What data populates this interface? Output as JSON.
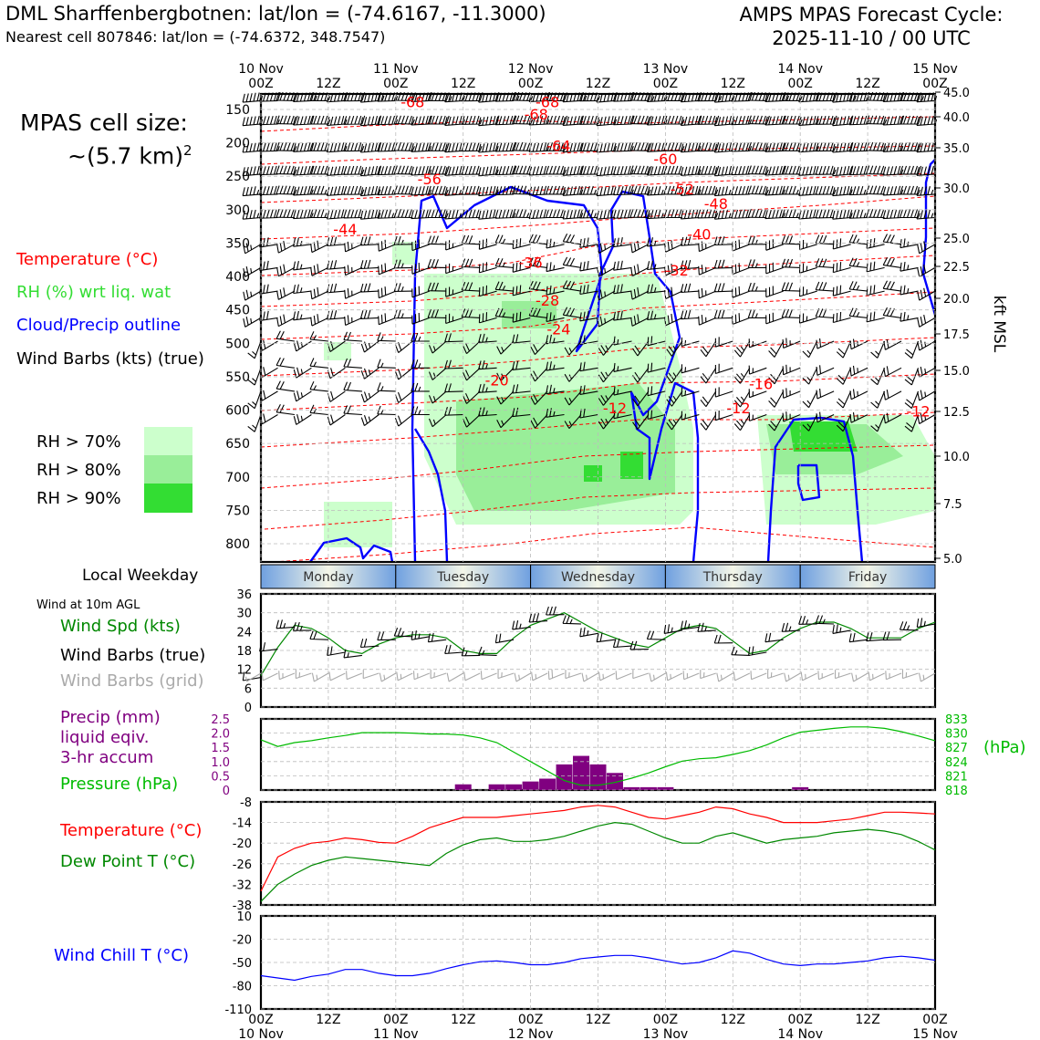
{
  "header": {
    "title_left": "DML Sharffenbergbotnen: lat/lon = (-74.6167, -11.3000)",
    "subtitle_left": "Nearest cell 807846: lat/lon = (-74.6372, 348.7547)",
    "title_right_line1": "AMPS MPAS Forecast Cycle:",
    "title_right_line2": "2025-11-10 / 00 UTC",
    "cell_size_line1": "MPAS cell size:",
    "cell_size_line2": "~(5.7 km)",
    "cell_size_exp": "2"
  },
  "legend_upper": {
    "temperature": "Temperature (°C)",
    "rh": "RH (%) wrt liq. wat",
    "cloud": "Cloud/Precip outline",
    "wind": "Wind Barbs (kts) (true)",
    "rh70": "RH > 70%",
    "rh80": "RH > 80%",
    "rh90": "RH > 90%"
  },
  "colors": {
    "temperature": "#ff0000",
    "rh_text": "#33dd33",
    "cloud": "#0000ff",
    "rh70": "#ccffcc",
    "rh80": "#99ee99",
    "rh90": "#33dd33",
    "wind_spd": "#008800",
    "barbs_grid": "#aaaaaa",
    "precip": "#800080",
    "pressure": "#00bb00",
    "dewpoint": "#008800",
    "windchill": "#0000ff"
  },
  "panel_labels": {
    "weekday_title": "Local Weekday",
    "wind10_title": "Wind at 10m AGL",
    "wind_spd": "Wind Spd (kts)",
    "wind_barbs_true": "Wind Barbs (true)",
    "wind_barbs_grid": "Wind Barbs (grid)",
    "precip_1": "Precip (mm)",
    "precip_2": "liquid eqiv.",
    "precip_3": "3-hr accum",
    "pressure": "Pressure (hPa)",
    "pressure_unit": "(hPa)",
    "temperature": "Temperature (°C)",
    "dewpoint": "Dew Point T (°C)",
    "windchill": "Wind Chill T (°C)",
    "kft_label": "kft MSL"
  },
  "chart_data": [
    {
      "type": "heatmap",
      "name": "cross-section",
      "x_hours": [
        0,
        120
      ],
      "top_ticks": [
        {
          "h": 0,
          "line1": "10 Nov",
          "line2": "00Z"
        },
        {
          "h": 12,
          "line1": "",
          "line2": "12Z"
        },
        {
          "h": 24,
          "line1": "11 Nov",
          "line2": "00Z"
        },
        {
          "h": 36,
          "line1": "",
          "line2": "12Z"
        },
        {
          "h": 48,
          "line1": "12 Nov",
          "line2": "00Z"
        },
        {
          "h": 60,
          "line1": "",
          "line2": "12Z"
        },
        {
          "h": 72,
          "line1": "13 Nov",
          "line2": "00Z"
        },
        {
          "h": 84,
          "line1": "",
          "line2": "12Z"
        },
        {
          "h": 96,
          "line1": "14 Nov",
          "line2": "00Z"
        },
        {
          "h": 108,
          "line1": "",
          "line2": "12Z"
        },
        {
          "h": 120,
          "line1": "15 Nov",
          "line2": "00Z"
        }
      ],
      "pressure_levels": [
        "150",
        "200",
        "250",
        "300",
        "350",
        "400",
        "450",
        "500",
        "550",
        "600",
        "650",
        "700",
        "750",
        "800"
      ],
      "kft_ticks": [
        "45.0",
        "40.0",
        "35.0",
        "30.0",
        "25.0",
        "22.5",
        "20.0",
        "17.5",
        "15.0",
        "12.5",
        "10.0",
        "7.5",
        "5.0"
      ],
      "temp_labels": [
        {
          "v": "-68",
          "h": 27,
          "p": 140
        },
        {
          "v": "-68",
          "h": 51,
          "p": 140
        },
        {
          "v": "-68",
          "h": 49,
          "p": 158
        },
        {
          "v": "-64",
          "h": 53,
          "p": 205
        },
        {
          "v": "-60",
          "h": 72,
          "p": 225
        },
        {
          "v": "-56",
          "h": 30,
          "p": 255
        },
        {
          "v": "-52",
          "h": 75,
          "p": 270
        },
        {
          "v": "-48",
          "h": 81,
          "p": 292
        },
        {
          "v": "-44",
          "h": 15,
          "p": 330
        },
        {
          "v": "-40",
          "h": 78,
          "p": 338
        },
        {
          "v": "-36",
          "h": 48,
          "p": 380
        },
        {
          "v": "-32",
          "h": 74,
          "p": 392
        },
        {
          "v": "-28",
          "h": 51,
          "p": 437
        },
        {
          "v": "-24",
          "h": 53,
          "p": 480
        },
        {
          "v": "-20",
          "h": 42,
          "p": 556
        },
        {
          "v": "-16",
          "h": 89,
          "p": 562
        },
        {
          "v": "-12",
          "h": 63,
          "p": 598
        },
        {
          "v": "-12",
          "h": 85,
          "p": 598
        },
        {
          "v": "-12",
          "h": 117,
          "p": 603
        }
      ]
    },
    {
      "type": "table",
      "name": "weekday-bar",
      "days": [
        "Monday",
        "Tuesday",
        "Wednesday",
        "Thursday",
        "Friday"
      ]
    },
    {
      "type": "line",
      "name": "wind-speed",
      "ylim": [
        0,
        36
      ],
      "yticks": [
        "0",
        "6",
        "12",
        "18",
        "24",
        "30",
        "36"
      ],
      "x": [
        0,
        3,
        6,
        9,
        12,
        15,
        18,
        21,
        24,
        27,
        30,
        33,
        36,
        39,
        42,
        45,
        48,
        51,
        54,
        57,
        60,
        63,
        66,
        69,
        72,
        75,
        78,
        81,
        84,
        87,
        90,
        93,
        96,
        99,
        102,
        105,
        108,
        111,
        114,
        117,
        120
      ],
      "values": [
        10,
        19,
        26,
        25,
        22,
        18,
        17,
        20,
        22,
        23,
        23,
        22,
        18,
        17,
        17,
        22,
        26,
        28,
        30,
        27,
        24,
        22,
        20,
        19,
        22,
        25,
        26,
        25,
        21,
        17,
        18,
        22,
        25,
        27,
        27,
        25,
        22,
        22,
        22,
        25,
        27
      ]
    },
    {
      "type": "bar",
      "name": "precip-pressure",
      "precip_ylim": [
        0,
        2.5
      ],
      "precip_ticks": [
        "0",
        "0.5",
        "1.0",
        "1.5",
        "2.0",
        "2.5"
      ],
      "precip_x": [
        36,
        42,
        45,
        48,
        51,
        54,
        57,
        60,
        63,
        66,
        69,
        72,
        96
      ],
      "precip_values": [
        0.2,
        0.2,
        0.2,
        0.3,
        0.4,
        0.9,
        1.2,
        0.9,
        0.6,
        0.1,
        0.1,
        0.1,
        0.1
      ],
      "pressure_ylim": [
        818,
        833
      ],
      "pressure_ticks": [
        "818",
        "821",
        "824",
        "827",
        "830",
        "833"
      ],
      "pressure_x": [
        0,
        3,
        6,
        9,
        12,
        15,
        18,
        21,
        24,
        27,
        30,
        33,
        36,
        39,
        42,
        45,
        48,
        51,
        54,
        57,
        60,
        63,
        66,
        69,
        72,
        75,
        78,
        81,
        84,
        87,
        90,
        93,
        96,
        99,
        102,
        105,
        108,
        111,
        114,
        117,
        120
      ],
      "pressure_values": [
        828.6,
        827.2,
        828.0,
        828.4,
        829.0,
        829.5,
        830.1,
        830.1,
        830.1,
        830.0,
        829.8,
        829.8,
        829.6,
        829.0,
        828.0,
        826.0,
        824.0,
        822.0,
        820.0,
        819.0,
        819.0,
        819.6,
        820.5,
        821.6,
        822.9,
        824.1,
        824.6,
        824.8,
        825.5,
        826.3,
        827.5,
        829.0,
        830.2,
        830.6,
        831.0,
        831.3,
        831.3,
        831.0,
        830.3,
        829.4,
        828.4
      ]
    },
    {
      "type": "line",
      "name": "temperature-dewpoint",
      "ylim": [
        -38,
        -8
      ],
      "yticks": [
        "-38",
        "-32",
        "-26",
        "-20",
        "-14",
        "-8"
      ],
      "x": [
        0,
        3,
        6,
        9,
        12,
        15,
        18,
        21,
        24,
        27,
        30,
        33,
        36,
        39,
        42,
        45,
        48,
        51,
        54,
        57,
        60,
        63,
        66,
        69,
        72,
        75,
        78,
        81,
        84,
        87,
        90,
        93,
        96,
        99,
        102,
        105,
        108,
        111,
        114,
        117,
        120
      ],
      "series": [
        {
          "name": "Temperature",
          "values": [
            -34,
            -24,
            -21.5,
            -20,
            -19.5,
            -18.5,
            -19,
            -19.8,
            -20,
            -18,
            -15.5,
            -14,
            -12.5,
            -12.5,
            -12.5,
            -12,
            -11.5,
            -11,
            -10.5,
            -9.5,
            -9,
            -9.5,
            -11,
            -12.5,
            -13,
            -12,
            -11,
            -9.5,
            -10,
            -11.5,
            -12.5,
            -14,
            -14,
            -14,
            -13.5,
            -13,
            -12,
            -11,
            -11,
            -11.2,
            -11.5
          ]
        },
        {
          "name": "Dew Point",
          "values": [
            -37,
            -32,
            -29,
            -26.5,
            -25,
            -24,
            -24.5,
            -25,
            -25.5,
            -26,
            -26.5,
            -23,
            -20.5,
            -19,
            -18.5,
            -19.5,
            -19.5,
            -19,
            -18,
            -16.5,
            -15,
            -14,
            -14.5,
            -16.5,
            -18.5,
            -20,
            -20,
            -18,
            -17,
            -18.5,
            -20,
            -19,
            -18.5,
            -18,
            -17,
            -16.5,
            -16,
            -16.5,
            -17.5,
            -19.5,
            -22
          ]
        }
      ]
    },
    {
      "type": "line",
      "name": "wind-chill",
      "ylim": [
        -110,
        10
      ],
      "yticks": [
        "-110",
        "-80",
        "-50",
        "-20",
        "10"
      ],
      "x": [
        0,
        3,
        6,
        9,
        12,
        15,
        18,
        21,
        24,
        27,
        30,
        33,
        36,
        39,
        42,
        45,
        48,
        51,
        54,
        57,
        60,
        63,
        66,
        69,
        72,
        75,
        78,
        81,
        84,
        87,
        90,
        93,
        96,
        99,
        102,
        105,
        108,
        111,
        114,
        117,
        120
      ],
      "values": [
        -67,
        -70,
        -73,
        -68,
        -65,
        -59,
        -59,
        -64,
        -67,
        -67,
        -64,
        -58,
        -53,
        -49,
        -48,
        -50,
        -53,
        -53,
        -50,
        -45,
        -43,
        -41,
        -41,
        -44,
        -48,
        -52,
        -50,
        -44,
        -35,
        -38,
        -46,
        -52,
        -54,
        -52,
        -52,
        -50,
        -48,
        -44,
        -42,
        -44,
        -47
      ]
    }
  ]
}
